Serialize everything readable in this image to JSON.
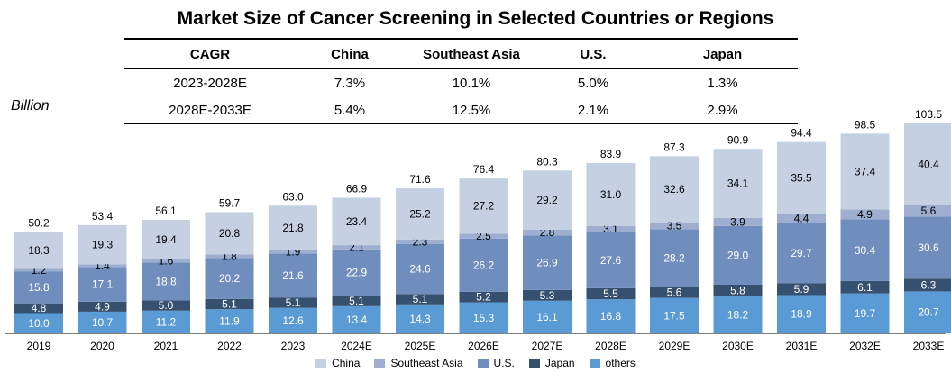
{
  "title": "Market Size of Cancer Screening in Selected Countries or Regions",
  "unit_label": "Billion",
  "cagr_table": {
    "headers": [
      "CAGR",
      "China",
      "Southeast Asia",
      "U.S.",
      "Japan"
    ],
    "rows": [
      [
        "2023-2028E",
        "7.3%",
        "10.1%",
        "5.0%",
        "1.3%"
      ],
      [
        "2028E-2033E",
        "5.4%",
        "12.5%",
        "2.1%",
        "2.9%"
      ]
    ]
  },
  "colors": {
    "China": "#c5d0e3",
    "Southeast Asia": "#9daecf",
    "U.S.": "#6f8dbd",
    "Japan": "#36506f",
    "others": "#5b9bd5"
  },
  "chart_data": {
    "type": "bar",
    "stacked": true,
    "categories": [
      "2019",
      "2020",
      "2021",
      "2022",
      "2023",
      "2024E",
      "2025E",
      "2026E",
      "2027E",
      "2028E",
      "2029E",
      "2030E",
      "2031E",
      "2032E",
      "2033E"
    ],
    "series": [
      {
        "name": "others",
        "values": [
          10.0,
          10.7,
          11.2,
          11.9,
          12.6,
          13.4,
          14.3,
          15.3,
          16.1,
          16.8,
          17.5,
          18.2,
          18.9,
          19.7,
          20.7
        ]
      },
      {
        "name": "Japan",
        "values": [
          4.8,
          4.9,
          5.0,
          5.1,
          5.1,
          5.1,
          5.1,
          5.2,
          5.3,
          5.5,
          5.6,
          5.8,
          5.9,
          6.1,
          6.3
        ]
      },
      {
        "name": "U.S.",
        "values": [
          15.8,
          17.1,
          18.8,
          20.2,
          21.6,
          22.9,
          24.6,
          26.2,
          26.9,
          27.6,
          28.2,
          29.0,
          29.7,
          30.4,
          30.6
        ]
      },
      {
        "name": "Southeast Asia",
        "values": [
          1.2,
          1.4,
          1.6,
          1.8,
          1.9,
          2.1,
          2.3,
          2.5,
          2.8,
          3.1,
          3.5,
          3.9,
          4.4,
          4.9,
          5.6
        ]
      },
      {
        "name": "China",
        "values": [
          18.3,
          19.3,
          19.4,
          20.8,
          21.8,
          23.4,
          25.2,
          27.2,
          29.2,
          31.0,
          32.6,
          34.1,
          35.5,
          37.4,
          40.4
        ]
      }
    ],
    "totals": [
      "50.2",
      "53.4",
      "56.1",
      "59.7",
      "63.0",
      "66.9",
      "71.6",
      "76.4",
      "80.3",
      "83.9",
      "87.3",
      "90.9",
      "94.4",
      "98.5",
      "103.5"
    ],
    "legend_order": [
      "China",
      "Southeast Asia",
      "U.S.",
      "Japan",
      "others"
    ],
    "legend_position": "bottom",
    "grid": false
  }
}
